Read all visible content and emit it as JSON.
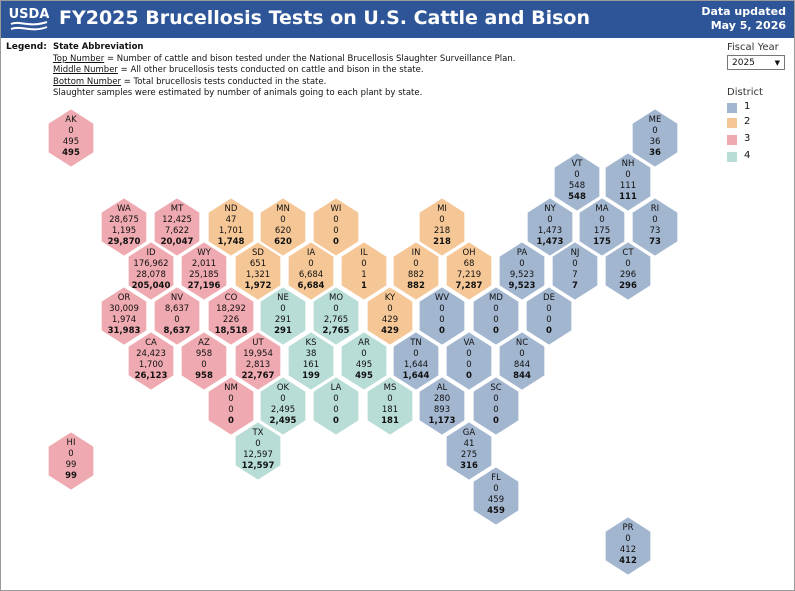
{
  "header": {
    "logo_text": "USDA",
    "title": "FY2025 Brucellosis Tests on U.S. Cattle and Bison",
    "updated_line1": "Data updated",
    "updated_line2": "May 5, 2026"
  },
  "legend": {
    "title": "Legend:",
    "heading": "State Abbreviation",
    "top_term": "Top Number",
    "top_desc": " = Number of cattle and bison tested under the National Brucellosis Slaughter Surveillance Plan.",
    "middle_term": "Middle Number",
    "middle_desc": " = All other brucellosis tests conducted on cattle and bison in the state.",
    "bottom_term": "Bottom Number",
    "bottom_desc": " = Total brucellosis tests conducted in the state.",
    "note": "Slaughter samples were estimated by number of animals going to each plant by state."
  },
  "filter": {
    "label": "Fiscal Year",
    "selected": "2025"
  },
  "district_legend": {
    "label": "District",
    "items": [
      {
        "name": "1",
        "color": "#a3b6d0"
      },
      {
        "name": "2",
        "color": "#f6c796"
      },
      {
        "name": "3",
        "color": "#eeaab0"
      },
      {
        "name": "4",
        "color": "#b8dcd6"
      }
    ]
  },
  "states": [
    {
      "abbr": "AK",
      "top": "0",
      "mid": "495",
      "total": "495",
      "district": 3
    },
    {
      "abbr": "ME",
      "top": "0",
      "mid": "36",
      "total": "36",
      "district": 1
    },
    {
      "abbr": "VT",
      "top": "0",
      "mid": "548",
      "total": "548",
      "district": 1
    },
    {
      "abbr": "NH",
      "top": "0",
      "mid": "111",
      "total": "111",
      "district": 1
    },
    {
      "abbr": "WA",
      "top": "28,675",
      "mid": "1,195",
      "total": "29,870",
      "district": 3
    },
    {
      "abbr": "MT",
      "top": "12,425",
      "mid": "7,622",
      "total": "20,047",
      "district": 3
    },
    {
      "abbr": "ND",
      "top": "47",
      "mid": "1,701",
      "total": "1,748",
      "district": 2
    },
    {
      "abbr": "MN",
      "top": "0",
      "mid": "620",
      "total": "620",
      "district": 2
    },
    {
      "abbr": "WI",
      "top": "0",
      "mid": "0",
      "total": "0",
      "district": 2
    },
    {
      "abbr": "MI",
      "top": "0",
      "mid": "218",
      "total": "218",
      "district": 2
    },
    {
      "abbr": "NY",
      "top": "0",
      "mid": "1,473",
      "total": "1,473",
      "district": 1
    },
    {
      "abbr": "MA",
      "top": "0",
      "mid": "175",
      "total": "175",
      "district": 1
    },
    {
      "abbr": "RI",
      "top": "0",
      "mid": "73",
      "total": "73",
      "district": 1
    },
    {
      "abbr": "ID",
      "top": "176,962",
      "mid": "28,078",
      "total": "205,040",
      "district": 3
    },
    {
      "abbr": "WY",
      "top": "2,011",
      "mid": "25,185",
      "total": "27,196",
      "district": 3
    },
    {
      "abbr": "SD",
      "top": "651",
      "mid": "1,321",
      "total": "1,972",
      "district": 2
    },
    {
      "abbr": "IA",
      "top": "0",
      "mid": "6,684",
      "total": "6,684",
      "district": 2
    },
    {
      "abbr": "IL",
      "top": "0",
      "mid": "1",
      "total": "1",
      "district": 2
    },
    {
      "abbr": "IN",
      "top": "0",
      "mid": "882",
      "total": "882",
      "district": 2
    },
    {
      "abbr": "OH",
      "top": "68",
      "mid": "7,219",
      "total": "7,287",
      "district": 2
    },
    {
      "abbr": "PA",
      "top": "0",
      "mid": "9,523",
      "total": "9,523",
      "district": 1
    },
    {
      "abbr": "NJ",
      "top": "0",
      "mid": "7",
      "total": "7",
      "district": 1
    },
    {
      "abbr": "CT",
      "top": "0",
      "mid": "296",
      "total": "296",
      "district": 1
    },
    {
      "abbr": "OR",
      "top": "30,009",
      "mid": "1,974",
      "total": "31,983",
      "district": 3
    },
    {
      "abbr": "NV",
      "top": "8,637",
      "mid": "0",
      "total": "8,637",
      "district": 3
    },
    {
      "abbr": "CO",
      "top": "18,292",
      "mid": "226",
      "total": "18,518",
      "district": 3
    },
    {
      "abbr": "NE",
      "top": "0",
      "mid": "291",
      "total": "291",
      "district": 4
    },
    {
      "abbr": "MO",
      "top": "0",
      "mid": "2,765",
      "total": "2,765",
      "district": 4
    },
    {
      "abbr": "KY",
      "top": "0",
      "mid": "429",
      "total": "429",
      "district": 2
    },
    {
      "abbr": "WV",
      "top": "0",
      "mid": "0",
      "total": "0",
      "district": 1
    },
    {
      "abbr": "MD",
      "top": "0",
      "mid": "0",
      "total": "0",
      "district": 1
    },
    {
      "abbr": "DE",
      "top": "0",
      "mid": "0",
      "total": "0",
      "district": 1
    },
    {
      "abbr": "CA",
      "top": "24,423",
      "mid": "1,700",
      "total": "26,123",
      "district": 3
    },
    {
      "abbr": "AZ",
      "top": "958",
      "mid": "0",
      "total": "958",
      "district": 3
    },
    {
      "abbr": "UT",
      "top": "19,954",
      "mid": "2,813",
      "total": "22,767",
      "district": 3
    },
    {
      "abbr": "KS",
      "top": "38",
      "mid": "161",
      "total": "199",
      "district": 4
    },
    {
      "abbr": "AR",
      "top": "0",
      "mid": "495",
      "total": "495",
      "district": 4
    },
    {
      "abbr": "TN",
      "top": "0",
      "mid": "1,644",
      "total": "1,644",
      "district": 1
    },
    {
      "abbr": "VA",
      "top": "0",
      "mid": "0",
      "total": "0",
      "district": 1
    },
    {
      "abbr": "NC",
      "top": "0",
      "mid": "844",
      "total": "844",
      "district": 1
    },
    {
      "abbr": "NM",
      "top": "0",
      "mid": "0",
      "total": "0",
      "district": 3
    },
    {
      "abbr": "OK",
      "top": "0",
      "mid": "2,495",
      "total": "2,495",
      "district": 4
    },
    {
      "abbr": "LA",
      "top": "0",
      "mid": "0",
      "total": "0",
      "district": 4
    },
    {
      "abbr": "MS",
      "top": "0",
      "mid": "181",
      "total": "181",
      "district": 4
    },
    {
      "abbr": "AL",
      "top": "280",
      "mid": "893",
      "total": "1,173",
      "district": 1
    },
    {
      "abbr": "SC",
      "top": "0",
      "mid": "0",
      "total": "0",
      "district": 1
    },
    {
      "abbr": "TX",
      "top": "0",
      "mid": "12,597",
      "total": "12,597",
      "district": 4
    },
    {
      "abbr": "GA",
      "top": "41",
      "mid": "275",
      "total": "316",
      "district": 1
    },
    {
      "abbr": "HI",
      "top": "0",
      "mid": "99",
      "total": "99",
      "district": 3
    },
    {
      "abbr": "FL",
      "top": "0",
      "mid": "459",
      "total": "459",
      "district": 1
    },
    {
      "abbr": "PR",
      "top": "0",
      "mid": "412",
      "total": "412",
      "district": 1
    }
  ]
}
